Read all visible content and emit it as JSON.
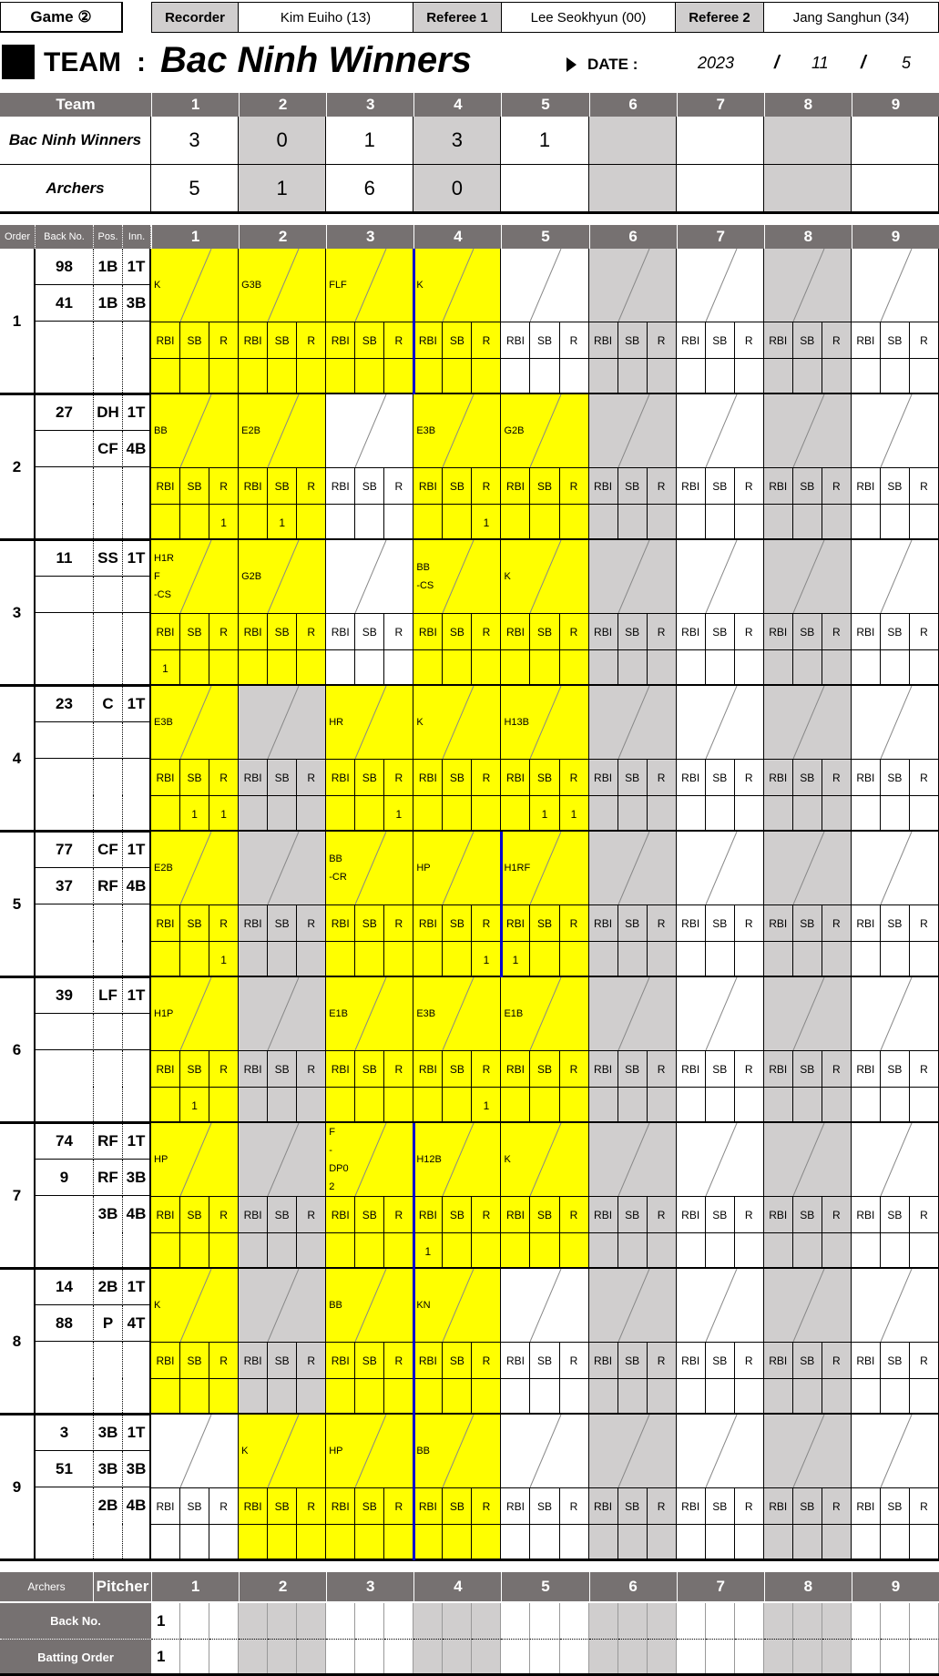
{
  "header": {
    "game_label": "Game ②",
    "recorder_label": "Recorder",
    "recorder": "Kim Euiho (13)",
    "referee1_label": "Referee 1",
    "referee1": "Lee Seokhyun (00)",
    "referee2_label": "Referee 2",
    "referee2": "Jang Sanghun (34)"
  },
  "title": {
    "team_label": "TEAM",
    "colon": ":",
    "team_name": "Bac Ninh Winners",
    "date_label": "DATE :",
    "year": "2023",
    "sep": "/",
    "month": "11",
    "day": "5"
  },
  "linescore": {
    "team_header": "Team",
    "innings": [
      "1",
      "2",
      "3",
      "4",
      "5",
      "6",
      "7",
      "8",
      "9"
    ],
    "rows": [
      {
        "team": "Bac Ninh Winners",
        "scores": [
          "3",
          "0",
          "1",
          "3",
          "1",
          "",
          "",
          "",
          ""
        ]
      },
      {
        "team": "Archers",
        "scores": [
          "5",
          "1",
          "6",
          "0",
          "",
          "",
          "",
          "",
          ""
        ]
      }
    ]
  },
  "batting": {
    "headers": {
      "order": "Order",
      "back_no": "Back No.",
      "pos": "Pos.",
      "inn": "Inn."
    },
    "sub_labels": [
      "RBI",
      "SB",
      "R"
    ],
    "colors": {
      "played": "#ffff00",
      "even_inning": "#d0cece",
      "header": "#767171",
      "inning_end_line": "#0000cc"
    },
    "orders": [
      {
        "order": "1",
        "inning_end_before": 4,
        "players": [
          {
            "back": "98",
            "pos": "1B",
            "inn": "1T"
          },
          {
            "back": "41",
            "pos": "1B",
            "inn": "3B"
          }
        ],
        "innings": [
          {
            "played": true,
            "result": [
              "K"
            ],
            "rbi": "",
            "sb": "",
            "r": ""
          },
          {
            "played": true,
            "result": [
              "G3B"
            ],
            "rbi": "",
            "sb": "",
            "r": ""
          },
          {
            "played": true,
            "result": [
              "FLF"
            ],
            "rbi": "",
            "sb": "",
            "r": ""
          },
          {
            "played": true,
            "result": [
              "K"
            ],
            "rbi": "",
            "sb": "",
            "r": ""
          },
          {
            "played": false,
            "result": [],
            "rbi": "",
            "sb": "",
            "r": ""
          }
        ]
      },
      {
        "order": "2",
        "inning_end_before": 0,
        "players": [
          {
            "back": "27",
            "pos": "DH",
            "inn": "1T"
          },
          {
            "back": "",
            "pos": "CF",
            "inn": "4B"
          }
        ],
        "innings": [
          {
            "played": true,
            "result": [
              "BB"
            ],
            "rbi": "",
            "sb": "",
            "r": "1"
          },
          {
            "played": true,
            "result": [
              "E2B"
            ],
            "rbi": "",
            "sb": "1",
            "r": ""
          },
          {
            "played": false,
            "result": [],
            "rbi": "",
            "sb": "",
            "r": ""
          },
          {
            "played": true,
            "result": [
              "E3B"
            ],
            "rbi": "",
            "sb": "",
            "r": "1"
          },
          {
            "played": true,
            "result": [
              "G2B"
            ],
            "rbi": "",
            "sb": "",
            "r": ""
          }
        ]
      },
      {
        "order": "3",
        "inning_end_before": 0,
        "players": [
          {
            "back": "11",
            "pos": "SS",
            "inn": "1T"
          }
        ],
        "innings": [
          {
            "played": true,
            "result": [
              "H1R",
              "F",
              "-CS"
            ],
            "rbi": "1",
            "sb": "",
            "r": ""
          },
          {
            "played": true,
            "result": [
              "G2B"
            ],
            "rbi": "",
            "sb": "",
            "r": ""
          },
          {
            "played": false,
            "result": [],
            "rbi": "",
            "sb": "",
            "r": ""
          },
          {
            "played": true,
            "result": [
              "BB",
              "-CS"
            ],
            "rbi": "",
            "sb": "",
            "r": ""
          },
          {
            "played": true,
            "result": [
              "K"
            ],
            "rbi": "",
            "sb": "",
            "r": ""
          }
        ]
      },
      {
        "order": "4",
        "inning_end_before": 0,
        "players": [
          {
            "back": "23",
            "pos": "C",
            "inn": "1T"
          }
        ],
        "innings": [
          {
            "played": true,
            "result": [
              "E3B"
            ],
            "rbi": "",
            "sb": "1",
            "r": "1"
          },
          {
            "played": false,
            "result": [],
            "rbi": "",
            "sb": "",
            "r": ""
          },
          {
            "played": true,
            "result": [
              "HR"
            ],
            "rbi": "",
            "sb": "",
            "r": "1"
          },
          {
            "played": true,
            "result": [
              "K"
            ],
            "rbi": "",
            "sb": "",
            "r": ""
          },
          {
            "played": true,
            "result": [
              "H13B"
            ],
            "rbi": "",
            "sb": "1",
            "r": "1"
          }
        ]
      },
      {
        "order": "5",
        "inning_end_before": 5,
        "players": [
          {
            "back": "77",
            "pos": "CF",
            "inn": "1T"
          },
          {
            "back": "37",
            "pos": "RF",
            "inn": "4B"
          }
        ],
        "innings": [
          {
            "played": true,
            "result": [
              "E2B"
            ],
            "rbi": "",
            "sb": "",
            "r": "1"
          },
          {
            "played": false,
            "result": [],
            "rbi": "",
            "sb": "",
            "r": ""
          },
          {
            "played": true,
            "result": [
              "BB",
              "-CR"
            ],
            "rbi": "",
            "sb": "",
            "r": ""
          },
          {
            "played": true,
            "result": [
              "HP"
            ],
            "rbi": "",
            "sb": "",
            "r": "1"
          },
          {
            "played": true,
            "result": [
              "H1RF"
            ],
            "rbi": "1",
            "sb": "",
            "r": ""
          }
        ]
      },
      {
        "order": "6",
        "inning_end_before": 0,
        "players": [
          {
            "back": "39",
            "pos": "LF",
            "inn": "1T"
          }
        ],
        "innings": [
          {
            "played": true,
            "result": [
              "H1P"
            ],
            "rbi": "",
            "sb": "1",
            "r": ""
          },
          {
            "played": false,
            "result": [],
            "rbi": "",
            "sb": "",
            "r": ""
          },
          {
            "played": true,
            "result": [
              "E1B"
            ],
            "rbi": "",
            "sb": "",
            "r": ""
          },
          {
            "played": true,
            "result": [
              "E3B"
            ],
            "rbi": "",
            "sb": "",
            "r": "1"
          },
          {
            "played": true,
            "result": [
              "E1B"
            ],
            "rbi": "",
            "sb": "",
            "r": ""
          }
        ]
      },
      {
        "order": "7",
        "inning_end_before": 4,
        "players": [
          {
            "back": "74",
            "pos": "RF",
            "inn": "1T"
          },
          {
            "back": "9",
            "pos": "RF",
            "inn": "3B"
          },
          {
            "back": "",
            "pos": "3B",
            "inn": "4B"
          }
        ],
        "innings": [
          {
            "played": true,
            "result": [
              "HP"
            ],
            "rbi": "",
            "sb": "",
            "r": ""
          },
          {
            "played": false,
            "result": [],
            "rbi": "",
            "sb": "",
            "r": ""
          },
          {
            "played": true,
            "result": [
              "F",
              "-",
              "DP0",
              "2"
            ],
            "rbi": "",
            "sb": "",
            "r": ""
          },
          {
            "played": true,
            "result": [
              "H12B"
            ],
            "rbi": "1",
            "sb": "",
            "r": ""
          },
          {
            "played": true,
            "result": [
              "K"
            ],
            "rbi": "",
            "sb": "",
            "r": ""
          }
        ]
      },
      {
        "order": "8",
        "inning_end_before": 4,
        "players": [
          {
            "back": "14",
            "pos": "2B",
            "inn": "1T"
          },
          {
            "back": "88",
            "pos": "P",
            "inn": "4T"
          }
        ],
        "innings": [
          {
            "played": true,
            "result": [
              "K"
            ],
            "rbi": "",
            "sb": "",
            "r": ""
          },
          {
            "played": false,
            "result": [],
            "rbi": "",
            "sb": "",
            "r": ""
          },
          {
            "played": true,
            "result": [
              "BB"
            ],
            "rbi": "",
            "sb": "",
            "r": ""
          },
          {
            "played": true,
            "result": [
              "KN"
            ],
            "rbi": "",
            "sb": "",
            "r": ""
          },
          {
            "played": false,
            "result": [],
            "rbi": "",
            "sb": "",
            "r": ""
          }
        ]
      },
      {
        "order": "9",
        "inning_end_before": 4,
        "players": [
          {
            "back": "3",
            "pos": "3B",
            "inn": "1T"
          },
          {
            "back": "51",
            "pos": "3B",
            "inn": "3B"
          },
          {
            "back": "",
            "pos": "2B",
            "inn": "4B"
          }
        ],
        "innings": [
          {
            "played": false,
            "result": [],
            "rbi": "",
            "sb": "",
            "r": ""
          },
          {
            "played": true,
            "result": [
              "K"
            ],
            "rbi": "",
            "sb": "",
            "r": ""
          },
          {
            "played": true,
            "result": [
              "HP"
            ],
            "rbi": "",
            "sb": "",
            "r": ""
          },
          {
            "played": true,
            "result": [
              "BB"
            ],
            "rbi": "",
            "sb": "",
            "r": ""
          },
          {
            "played": false,
            "result": [],
            "rbi": "",
            "sb": "",
            "r": ""
          }
        ]
      }
    ]
  },
  "pitcher": {
    "team": "Archers",
    "label": "Pitcher",
    "back_no_label": "Back No.",
    "back_no": "1",
    "batting_order_label": "Batting Order",
    "batting_order": "1"
  }
}
